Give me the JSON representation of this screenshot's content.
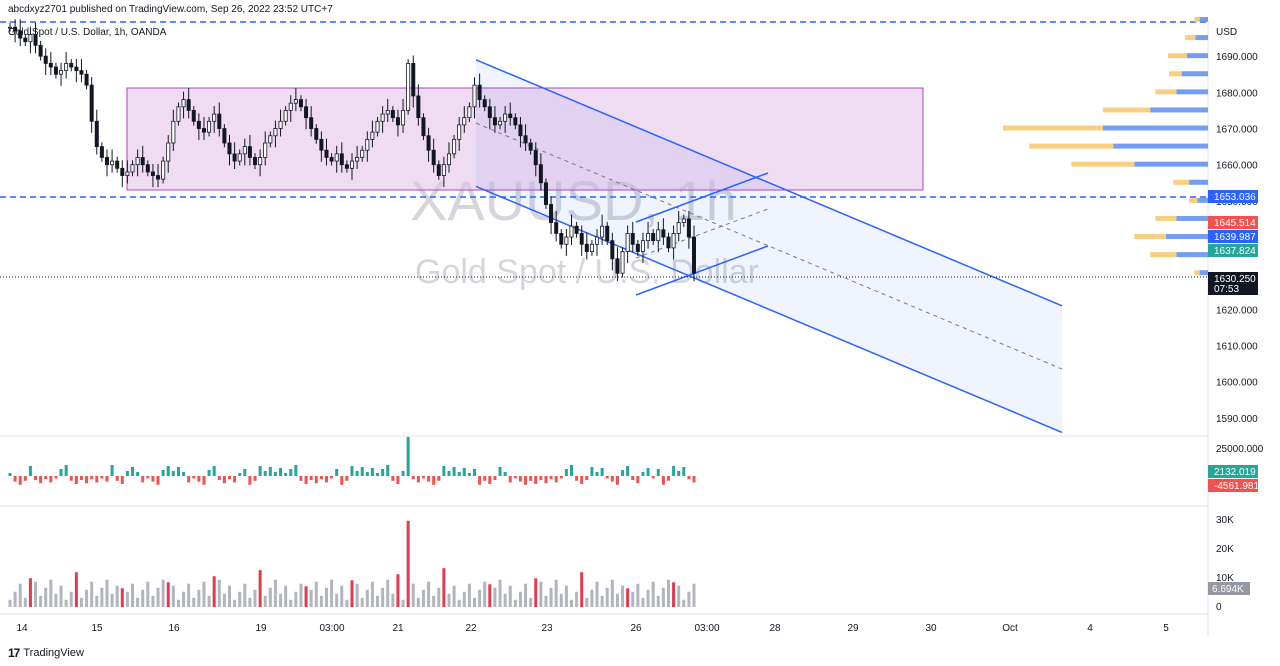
{
  "header": {
    "publisher": "abcdxyz2701 published on TradingView.com, Sep 26, 2022 23:52 UTC+7",
    "symbol_line": "Gold Spot / U.S. Dollar, 1h, OANDA"
  },
  "watermark": {
    "ticker": "XAUUSD, 1h",
    "name": "Gold Spot / U.S. Dollar"
  },
  "footer": {
    "brand": "TradingView",
    "logo": "17"
  },
  "colors": {
    "up": "#26a69a",
    "down": "#ef5350",
    "channel": "#2962ff",
    "box_fill": "#e1bee7",
    "box_stroke": "#ab47bc",
    "vp_up": "#f7c56b",
    "vp_down": "#5b8def",
    "volume_up": "#b2b5be",
    "volume_spike": "#e53950",
    "dashed_level": "#2962ff"
  },
  "price_axis": {
    "unit": "USD",
    "ticks": [
      "1690.000",
      "1680.000",
      "1670.000",
      "1660.000",
      "1650.000",
      "1620.000",
      "1610.000",
      "1600.000",
      "1590.000"
    ],
    "tags": [
      {
        "value": "1653.036",
        "color": "#2962ff"
      },
      {
        "value": "1645.514",
        "color": "#ef5350"
      },
      {
        "value": "1639.987",
        "color": "#2962ff"
      },
      {
        "value": "1637.824",
        "color": "#26a69a"
      },
      {
        "value": "1630.250",
        "color": "#131722"
      },
      {
        "value": "07:53",
        "color": "#131722"
      }
    ]
  },
  "delta_axis": {
    "ticks": [
      "25000.000"
    ],
    "tags": [
      {
        "value": "2132.019",
        "color": "#26a69a"
      },
      {
        "value": "-4561.981",
        "color": "#ef5350"
      }
    ]
  },
  "volume_axis": {
    "ticks": [
      "30K",
      "20K",
      "10K",
      "0"
    ],
    "tag": {
      "value": "6.694K",
      "color": "#9598a1"
    }
  },
  "time_axis": {
    "ticks": [
      "14",
      "15",
      "16",
      "19",
      "03:00",
      "21",
      "22",
      "23",
      "26",
      "03:00",
      "28",
      "29",
      "30",
      "Oct",
      "4",
      "5"
    ]
  },
  "chart_data": {
    "type": "candlestick",
    "symbol": "XAUUSD",
    "interval": "1h",
    "ylim": [
      1585,
      1700
    ],
    "last_price": 1630.25,
    "levels": {
      "dashed_upper": 1700.0,
      "dashed_lower": 1653.036,
      "range_box": [
        1653.5,
        1683.5
      ]
    },
    "regression_channel": {
      "upper_start": 1689,
      "upper_end": 1621,
      "lower_start": 1654,
      "lower_end": 1586
    },
    "candles_close": [
      1698,
      1697,
      1695,
      1694,
      1696,
      1693,
      1690,
      1688,
      1687,
      1685,
      1686,
      1688,
      1687,
      1686,
      1685,
      1682,
      1672,
      1665,
      1662,
      1660,
      1661,
      1659,
      1657,
      1658,
      1660,
      1662,
      1660,
      1658,
      1657,
      1656,
      1661,
      1666,
      1672,
      1676,
      1678,
      1675,
      1672,
      1670,
      1669,
      1672,
      1674,
      1670,
      1666,
      1663,
      1661,
      1663,
      1665,
      1662,
      1660,
      1662,
      1666,
      1668,
      1670,
      1672,
      1675,
      1677,
      1678,
      1676,
      1673,
      1670,
      1667,
      1664,
      1662,
      1661,
      1663,
      1660,
      1659,
      1661,
      1662,
      1664,
      1667,
      1669,
      1672,
      1674,
      1675,
      1673,
      1671,
      1675,
      1688,
      1679,
      1673,
      1668,
      1664,
      1660,
      1657,
      1660,
      1663,
      1667,
      1671,
      1673,
      1676,
      1682,
      1678,
      1676,
      1673,
      1671,
      1672,
      1674,
      1673,
      1671,
      1668,
      1666,
      1664,
      1660,
      1655,
      1649,
      1644,
      1641,
      1638,
      1640,
      1643,
      1641,
      1638,
      1636,
      1638,
      1640,
      1643,
      1639,
      1634,
      1630,
      1636,
      1641,
      1638,
      1636,
      1639,
      1641,
      1639,
      1642,
      1640,
      1637,
      1641,
      1644,
      1645,
      1640,
      1630
    ],
    "volume_profile_right": {
      "price_levels": [
        1700,
        1695,
        1690,
        1685,
        1680,
        1675,
        1670,
        1665,
        1660,
        1655,
        1650,
        1645,
        1640,
        1635,
        1630
      ],
      "up_volume": [
        5,
        10,
        18,
        12,
        20,
        45,
        95,
        80,
        60,
        15,
        8,
        20,
        30,
        25,
        5
      ],
      "down_volume": [
        8,
        12,
        20,
        25,
        30,
        55,
        100,
        90,
        70,
        18,
        10,
        30,
        40,
        30,
        8
      ]
    },
    "delta": {
      "ticks": [
        "25000.000"
      ],
      "last_positive": 2132.019,
      "last_negative": -4561.981
    },
    "volume": {
      "last": 6694,
      "ylim": [
        0,
        32000
      ]
    }
  }
}
